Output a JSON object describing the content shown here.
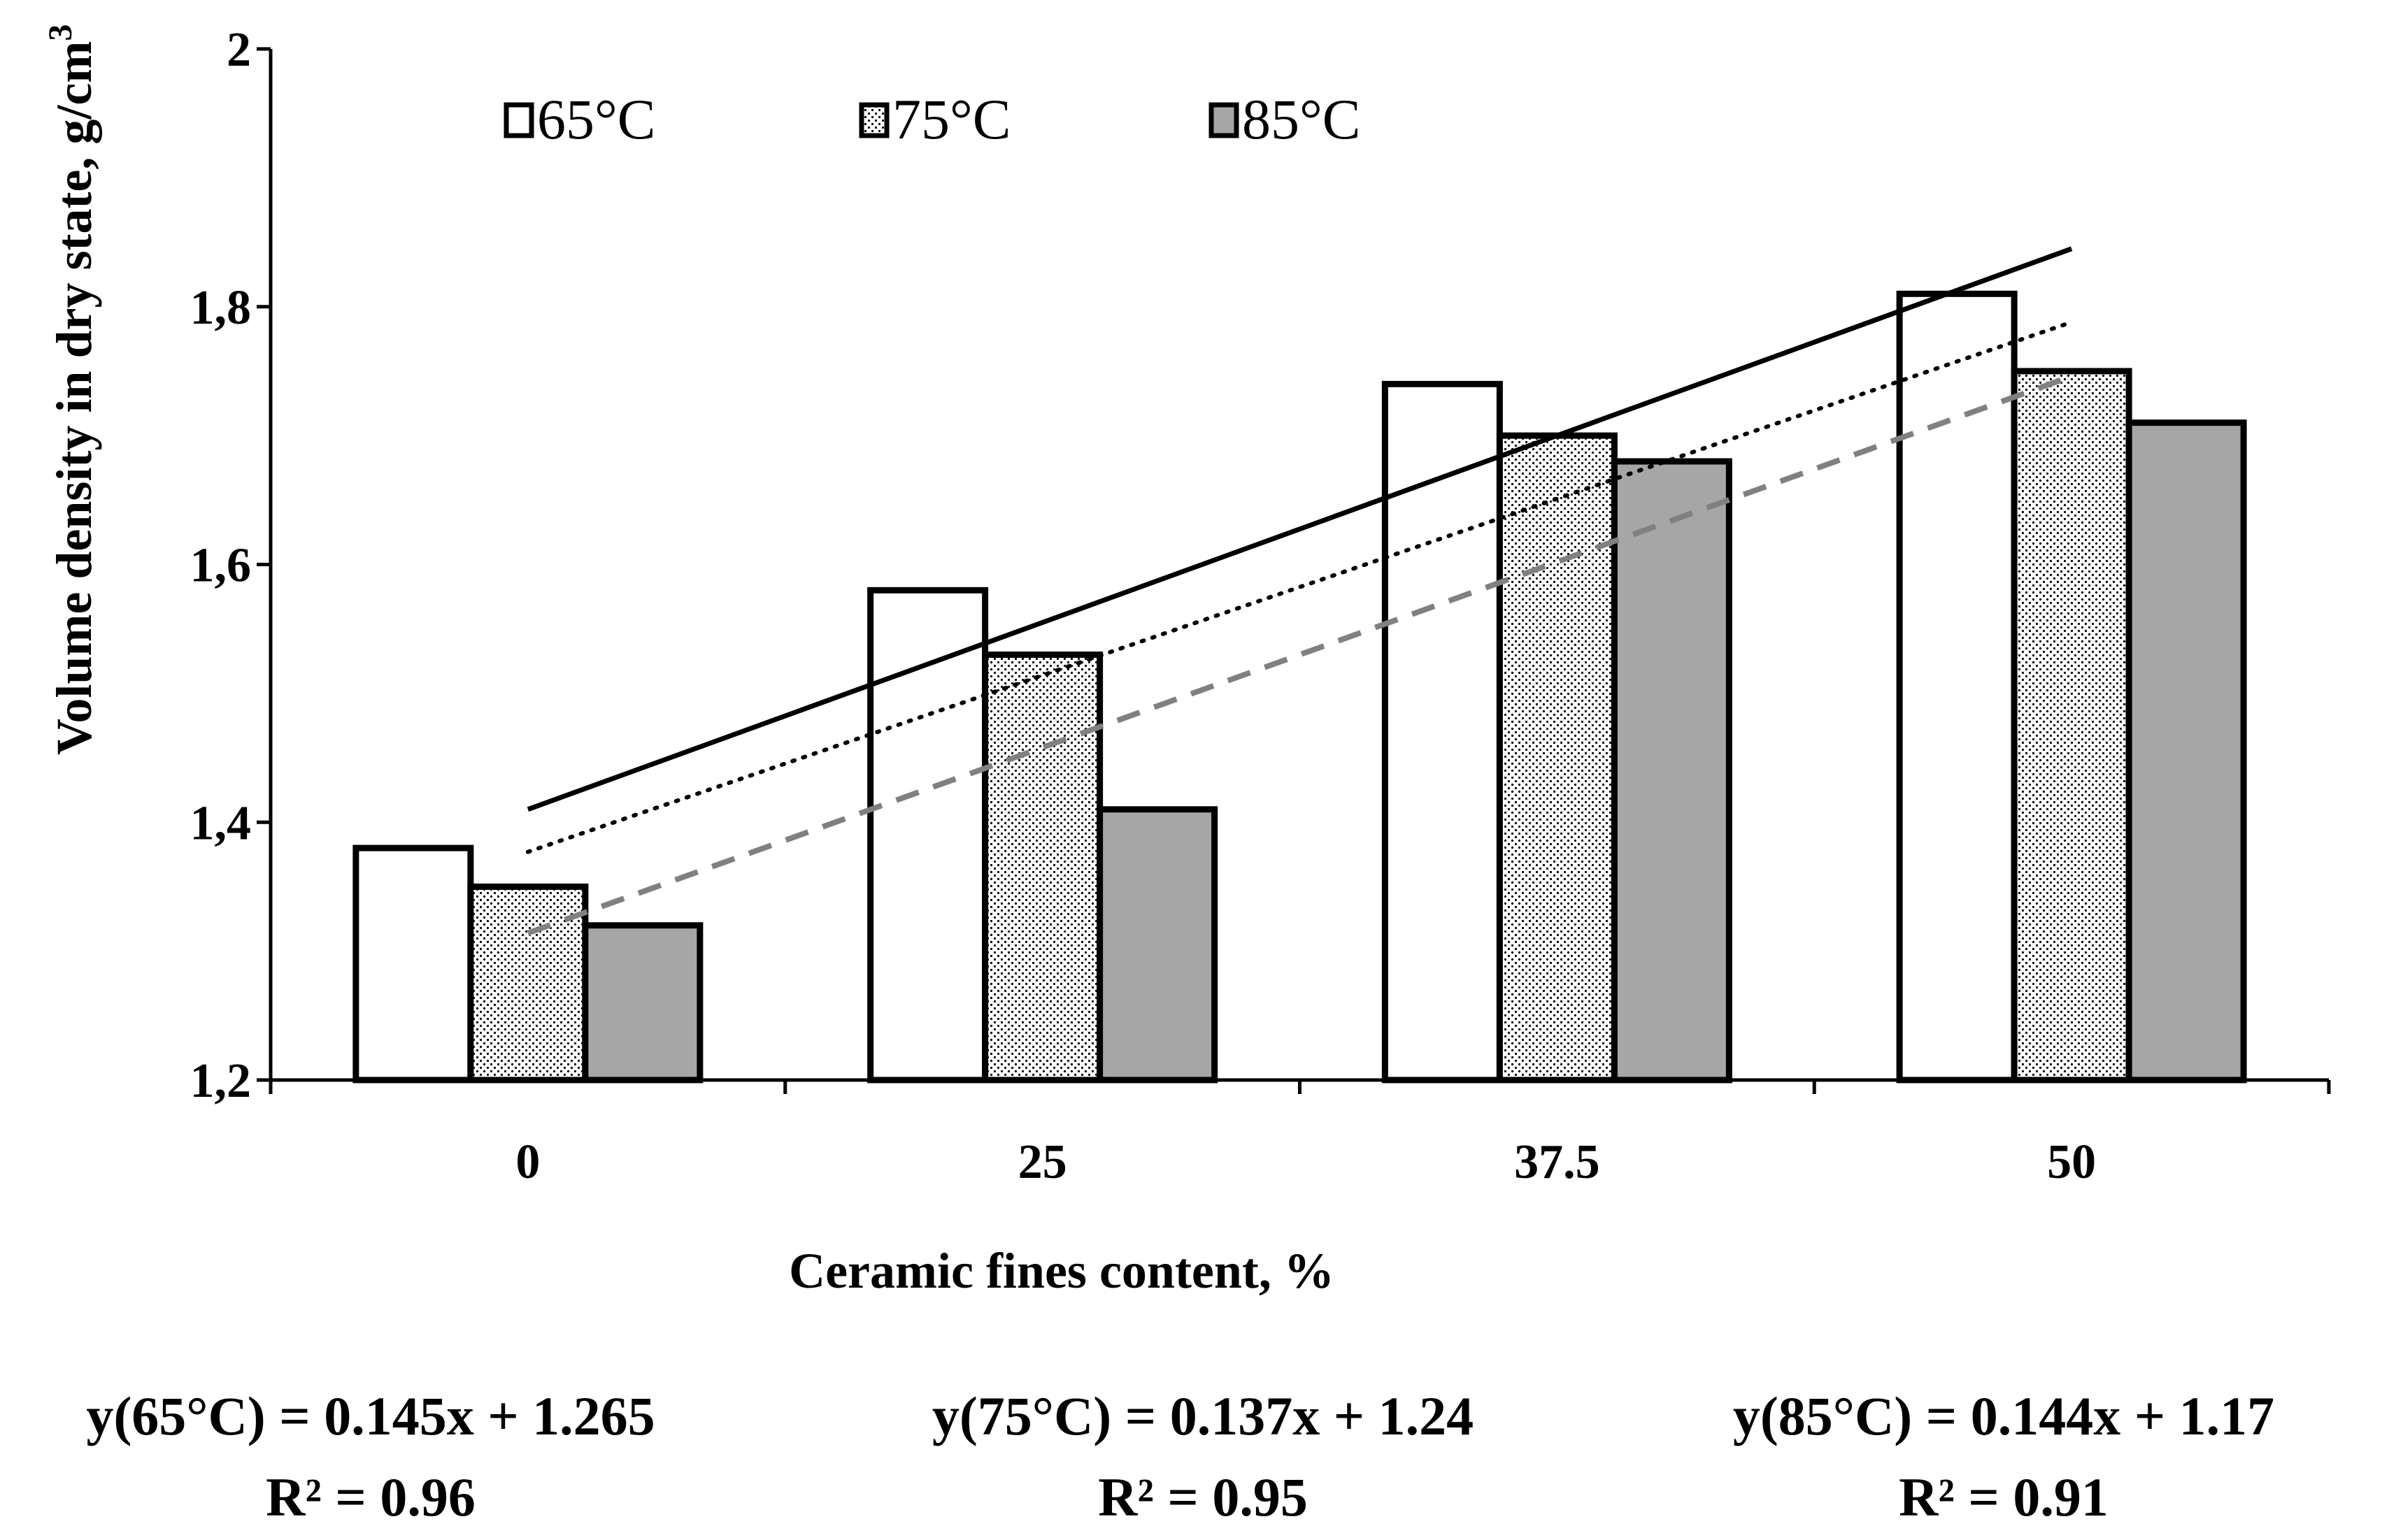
{
  "chart_data": {
    "type": "bar",
    "categories": [
      "0",
      "25",
      "37.5",
      "50"
    ],
    "series": [
      {
        "name": "65°C",
        "values": [
          1.38,
          1.58,
          1.74,
          1.81
        ],
        "pattern": "white",
        "trend": {
          "slope": 0.145,
          "intercept": 1.265,
          "style": "solid"
        }
      },
      {
        "name": "75°C",
        "values": [
          1.35,
          1.53,
          1.7,
          1.75
        ],
        "pattern": "dotted",
        "trend": {
          "slope": 0.137,
          "intercept": 1.24,
          "style": "dotted"
        }
      },
      {
        "name": "85°C",
        "values": [
          1.32,
          1.41,
          1.68,
          1.71
        ],
        "pattern": "gray",
        "trend": {
          "slope": 0.144,
          "intercept": 1.17,
          "style": "dashed"
        }
      }
    ],
    "ylim": [
      1.2,
      2.0
    ],
    "yticks": [
      "1,2",
      "1,4",
      "1,6",
      "1,8",
      "2"
    ],
    "ylabel": "Volume density in dry state, g/cm",
    "ylabel_sup": "3",
    "xlabel": "Ceramic fines content, %",
    "legend_position": "top",
    "colors": {
      "bar_outline": "#000000",
      "gray_fill": "#a6a6a6",
      "trend_85": "#808080"
    },
    "equations": [
      {
        "line1": "y(65°C) = 0.145x + 1.265",
        "line2": "R² = 0.96"
      },
      {
        "line1": "y(75°C)  = 0.137x + 1.24",
        "line2": "R² = 0.95"
      },
      {
        "line1": "y(85°C)  = 0.144x + 1.17",
        "line2": "R² = 0.91"
      }
    ]
  }
}
